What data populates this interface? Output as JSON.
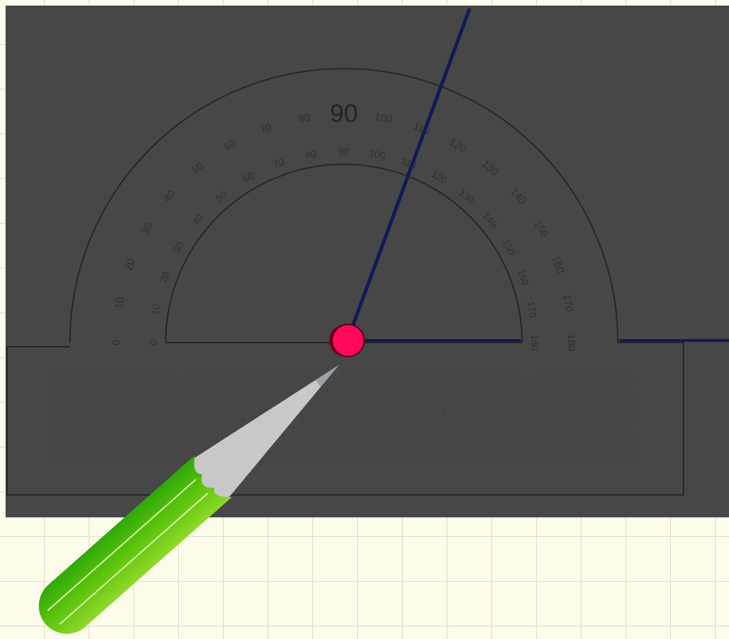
{
  "protractor": {
    "outer_scale": [
      0,
      10,
      20,
      30,
      40,
      50,
      60,
      70,
      80,
      90,
      100,
      110,
      120,
      130,
      140,
      150,
      160,
      170,
      180
    ],
    "inner_scale": [
      180,
      170,
      160,
      150,
      140,
      130,
      120,
      110,
      100,
      90,
      80,
      70,
      60,
      50,
      40,
      30,
      20,
      10,
      0
    ]
  }
}
